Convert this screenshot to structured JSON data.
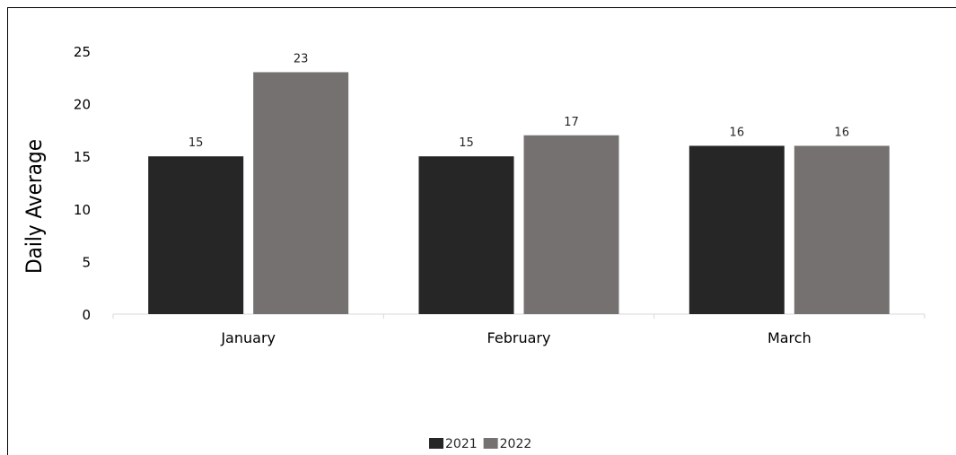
{
  "chart_data": {
    "type": "bar",
    "categories": [
      "January",
      "February",
      "March"
    ],
    "series": [
      {
        "name": "2021",
        "values": [
          15,
          15,
          16
        ],
        "color": "#262626"
      },
      {
        "name": "2022",
        "values": [
          23,
          17,
          16
        ],
        "color": "#767171"
      }
    ],
    "title": "",
    "xlabel": "",
    "ylabel": "Daily Average",
    "ylim": [
      0,
      25
    ],
    "yticks": [
      0,
      5,
      10,
      15,
      20,
      25
    ],
    "grid": false,
    "legend": "bottom-center",
    "data_labels": true
  }
}
